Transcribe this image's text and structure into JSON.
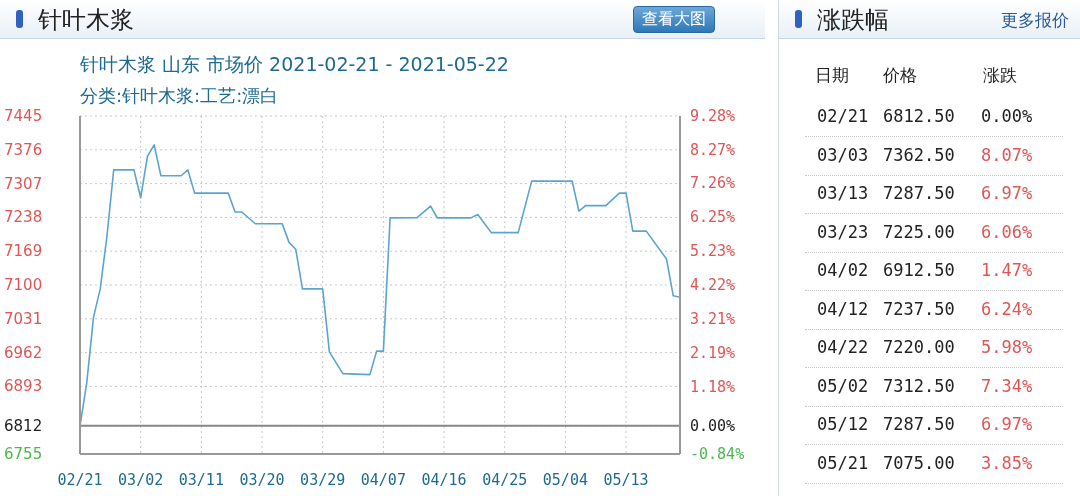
{
  "chart_data": [
    {
      "type": "line",
      "title": "针叶木浆",
      "subtitle": "针叶木浆 山东 市场价 2021-02-21 - 2021-05-22",
      "annotations": [
        "分类:针叶木浆:工艺:漂白",
        "查看大图"
      ],
      "x": [
        "2021-02-21",
        "2021-02-22",
        "2021-02-23",
        "2021-02-24",
        "2021-02-25",
        "2021-02-26",
        "2021-03-01",
        "2021-03-02",
        "2021-03-03",
        "2021-03-04",
        "2021-03-05",
        "2021-03-08",
        "2021-03-09",
        "2021-03-10",
        "2021-03-15",
        "2021-03-16",
        "2021-03-17",
        "2021-03-19",
        "2021-03-23",
        "2021-03-24",
        "2021-03-25",
        "2021-03-26",
        "2021-03-29",
        "2021-03-30",
        "2021-04-01",
        "2021-04-05",
        "2021-04-06",
        "2021-04-07",
        "2021-04-08",
        "2021-04-12",
        "2021-04-14",
        "2021-04-15",
        "2021-04-20",
        "2021-04-21",
        "2021-04-23",
        "2021-04-27",
        "2021-04-29",
        "2021-05-05",
        "2021-05-06",
        "2021-05-07",
        "2021-05-10",
        "2021-05-12",
        "2021-05-13",
        "2021-05-14",
        "2021-05-16",
        "2021-05-19",
        "2021-05-20",
        "2021-05-21"
      ],
      "series": [
        {
          "color": "#5aa5d0",
          "values": [
            6812.5,
            6900,
            7034,
            7092,
            7200,
            7335,
            7335,
            7278,
            7362.5,
            7386,
            7323,
            7323,
            7335,
            7287.5,
            7287.5,
            7249,
            7249,
            7225,
            7225,
            7187,
            7173,
            7092,
            7092,
            6963,
            6919,
            6917,
            6965,
            6965,
            7237,
            7237.5,
            7261,
            7237,
            7237,
            7244,
            7207,
            7207,
            7312,
            7312,
            7251,
            7262,
            7262,
            7287.5,
            7287.5,
            7210,
            7210,
            7153,
            7078,
            7075
          ]
        }
      ],
      "xlim": [
        "2021-02-21",
        "2021-05-21"
      ],
      "xticks": [
        {
          "value": "2021-02-21",
          "label": "02/21"
        },
        {
          "value": "2021-03-02",
          "label": "03/02"
        },
        {
          "value": "2021-03-11",
          "label": "03/11"
        },
        {
          "value": "2021-03-20",
          "label": "03/20"
        },
        {
          "value": "2021-03-29",
          "label": "03/29"
        },
        {
          "value": "2021-04-07",
          "label": "04/07"
        },
        {
          "value": "2021-04-16",
          "label": "04/16"
        },
        {
          "value": "2021-04-25",
          "label": "04/25"
        },
        {
          "value": "2021-05-04",
          "label": "05/04"
        },
        {
          "value": "2021-05-13",
          "label": "05/13"
        }
      ],
      "ylim": [
        6755,
        7445
      ],
      "yticks": [
        7445,
        7376,
        7307,
        7238,
        7169,
        7100,
        7031,
        6962,
        6893,
        6812,
        6755
      ],
      "y2lim": [
        -0.84,
        9.28
      ],
      "y2ticks": [
        {
          "value": 9.28,
          "label": "9.28%"
        },
        {
          "value": 8.27,
          "label": "8.27%"
        },
        {
          "value": 7.26,
          "label": "7.26%"
        },
        {
          "value": 6.25,
          "label": "6.25%"
        },
        {
          "value": 5.23,
          "label": "5.23%"
        },
        {
          "value": 4.22,
          "label": "4.22%"
        },
        {
          "value": 3.21,
          "label": "3.21%"
        },
        {
          "value": 2.19,
          "label": "2.19%"
        },
        {
          "value": 1.18,
          "label": "1.18%"
        },
        {
          "value": 0,
          "label": "0.00%"
        },
        {
          "value": -0.84,
          "label": "-0.84%"
        }
      ],
      "ref_lines": [
        {
          "axis": "y",
          "value": 6812.5,
          "color": "#888888"
        }
      ],
      "grid": true,
      "marker": "none",
      "line_style": "solid"
    },
    {
      "type": "other",
      "title": "涨跌幅",
      "annotations": [
        "更多报价"
      ],
      "xlabel": "日期",
      "categories": [
        "02/21",
        "03/03",
        "03/13",
        "03/23",
        "04/02",
        "04/12",
        "04/22",
        "05/02",
        "05/12",
        "05/21"
      ],
      "series": [
        {
          "name": "价格",
          "values": [
            6812.5,
            7362.5,
            7287.5,
            7225,
            6912.5,
            7237.5,
            7220,
            7312.5,
            7287.5,
            7075
          ],
          "value_labels": [
            "6812.50",
            "7362.50",
            "7287.50",
            "7225.00",
            "6912.50",
            "7237.50",
            "7220.00",
            "7312.50",
            "7287.50",
            "7075.00"
          ]
        },
        {
          "name": "涨跌",
          "values": [
            0,
            8.07,
            6.97,
            6.06,
            1.47,
            6.24,
            5.98,
            7.34,
            6.97,
            3.85
          ],
          "value_labels": [
            "0.00%",
            "8.07%",
            "6.97%",
            "6.06%",
            "1.47%",
            "6.24%",
            "5.98%",
            "7.34%",
            "6.97%",
            "3.85%"
          ]
        }
      ]
    }
  ]
}
